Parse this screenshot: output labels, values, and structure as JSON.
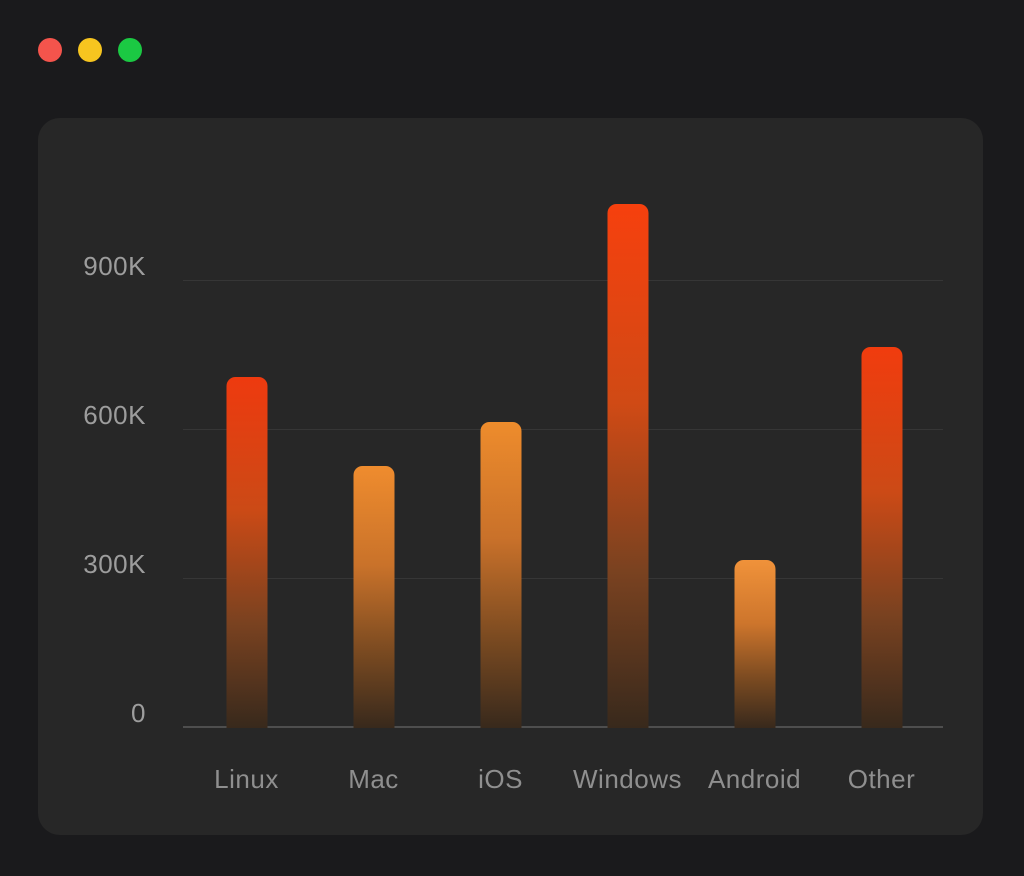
{
  "window": {
    "background": "#1a1a1c",
    "panel_background": "#272727",
    "controls": [
      {
        "name": "close",
        "color": "#f4544c"
      },
      {
        "name": "minimize",
        "color": "#f7c51f"
      },
      {
        "name": "zoom",
        "color": "#1bc943"
      }
    ]
  },
  "chart_data": {
    "type": "bar",
    "title": "",
    "categories": [
      "Linux",
      "Mac",
      "iOS",
      "Windows",
      "Android",
      "Other"
    ],
    "values": [
      707000,
      527000,
      616000,
      1055000,
      338000,
      767000
    ],
    "unit": "K",
    "xlabel": "",
    "ylabel": "",
    "ylim": [
      0,
      1228000
    ],
    "grid": true,
    "legend": false,
    "y_ticks": [
      {
        "label": "900K",
        "value": 900000
      },
      {
        "label": "600K",
        "value": 600000
      },
      {
        "label": "300K",
        "value": 300000
      },
      {
        "label": "0",
        "value": 0
      }
    ],
    "bar_gradients": [
      [
        "#ee3a0f",
        "#cb4a16",
        "#7a4220"
      ],
      [
        "#ef8c2e",
        "#c9722a",
        "#7c4b21"
      ],
      [
        "#ee8c2c",
        "#c9712a",
        "#7c4b21"
      ],
      [
        "#f6400e",
        "#d04a15",
        "#7a4220"
      ],
      [
        "#f0923a",
        "#cd752c",
        "#7c4b21"
      ],
      [
        "#f13c0e",
        "#cc4a16",
        "#7a4220"
      ]
    ],
    "colors": {
      "bar_fade_bottom": "#38291c",
      "gridline": "rgba(255,255,255,0.07)",
      "axis_line": "#4e4e4e",
      "y_tick_label": "#9d9d9d",
      "category_label": "#8f8f8f"
    }
  }
}
